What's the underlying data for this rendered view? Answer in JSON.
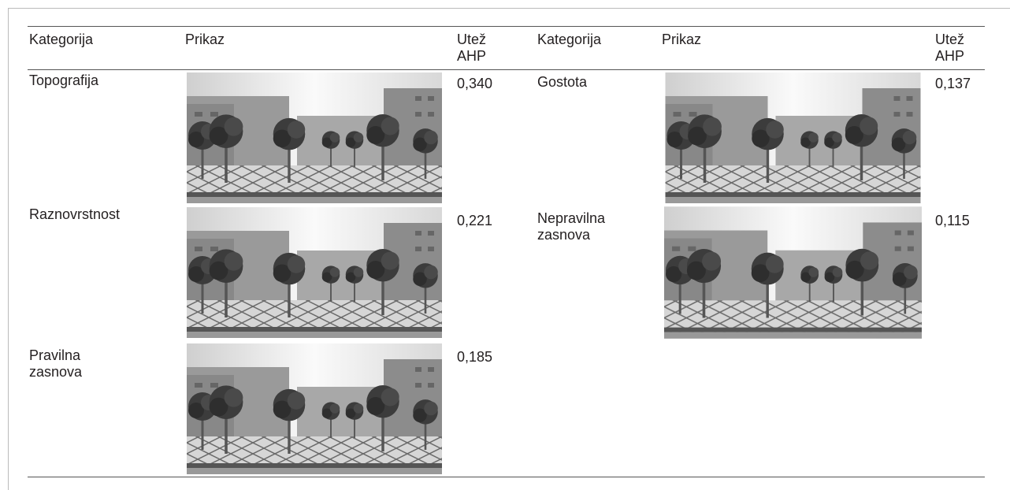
{
  "table": {
    "headers": [
      "Kategorija",
      "Prikaz",
      "Utež AHP",
      "Kategorija",
      "Prikaz",
      "Utež AHP"
    ],
    "left": [
      {
        "category": "Topografija",
        "weight": "0,340"
      },
      {
        "category": "Raznovrstnost",
        "weight": "0,221"
      },
      {
        "category": "Pravilna zasnova",
        "weight": "0,185"
      }
    ],
    "right": [
      {
        "category": "Gostota",
        "weight": "0,137"
      },
      {
        "category": "Nepravilna zasnova",
        "weight": "0,115"
      }
    ]
  }
}
